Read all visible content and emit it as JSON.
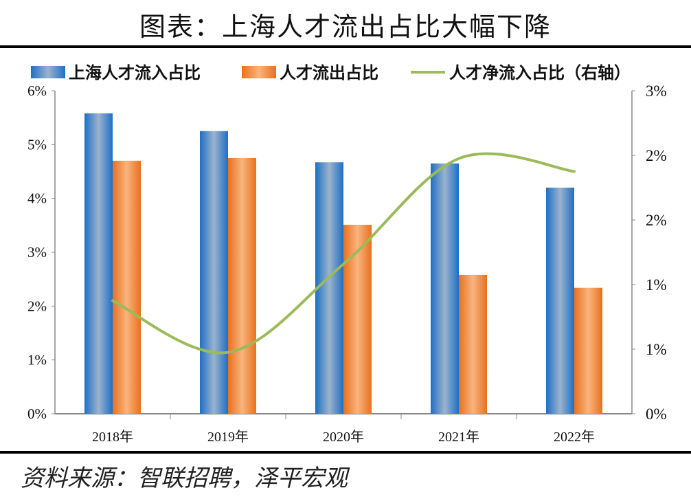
{
  "title": "图表：上海人才流出占比大幅下降",
  "source": "资料来源：智联招聘，泽平宏观",
  "chart_data": {
    "type": "bar+line",
    "categories": [
      "2018年",
      "2019年",
      "2020年",
      "2021年",
      "2022年"
    ],
    "series": [
      {
        "name": "上海人才流入占比",
        "type": "bar",
        "axis": "left",
        "color": "#2E75C8",
        "values": [
          5.58,
          5.25,
          4.67,
          4.65,
          4.2
        ]
      },
      {
        "name": "人才流出占比",
        "type": "bar",
        "axis": "left",
        "color": "#ED7D31",
        "values": [
          4.7,
          4.75,
          3.51,
          2.58,
          2.34
        ]
      },
      {
        "name": "人才净流入占比（右轴）",
        "type": "line",
        "axis": "right",
        "color": "#9BBB59",
        "values": [
          1.05,
          0.57,
          1.39,
          2.37,
          2.25
        ]
      }
    ],
    "left_axis": {
      "ylim": [
        0,
        6
      ],
      "ticks": [
        "0%",
        "1%",
        "2%",
        "3%",
        "4%",
        "5%",
        "6%"
      ]
    },
    "right_axis": {
      "ylim": [
        0,
        3
      ],
      "ticks": [
        "0%",
        "1%",
        "1%",
        "2%",
        "2%",
        "3%"
      ]
    },
    "grid": false,
    "legend": "top"
  }
}
